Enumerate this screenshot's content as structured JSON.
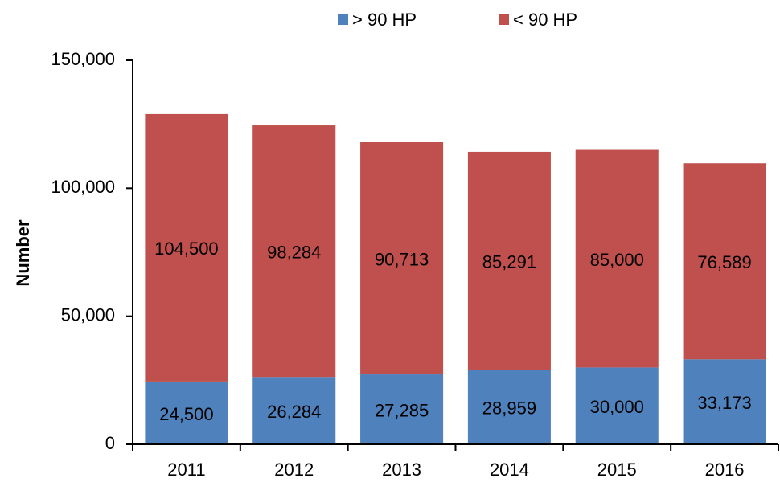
{
  "chart_data": {
    "type": "stacked_bar",
    "categories": [
      "2011",
      "2012",
      "2013",
      "2014",
      "2015",
      "2016"
    ],
    "series": [
      {
        "name": "> 90 HP",
        "color": "#4f81bd",
        "values": [
          24500,
          26284,
          27285,
          28959,
          30000,
          33173
        ],
        "value_labels": [
          "24,500",
          "26,284",
          "27,285",
          "28,959",
          "30,000",
          "33,173"
        ]
      },
      {
        "name": "< 90 HP",
        "color": "#c0504d",
        "values": [
          104500,
          98284,
          90713,
          85291,
          85000,
          76589
        ],
        "value_labels": [
          "104,500",
          "98,284",
          "90,713",
          "85,291",
          "85,000",
          "76,589"
        ]
      }
    ],
    "y_label": "Number",
    "ylim": [
      0,
      150000
    ],
    "yticks": [
      0,
      {
        "value": 50000,
        "label": "50,000"
      },
      {
        "value": 100000,
        "label": "100,000"
      },
      {
        "value": 150000,
        "label": "150,000"
      }
    ],
    "legend": "top"
  }
}
